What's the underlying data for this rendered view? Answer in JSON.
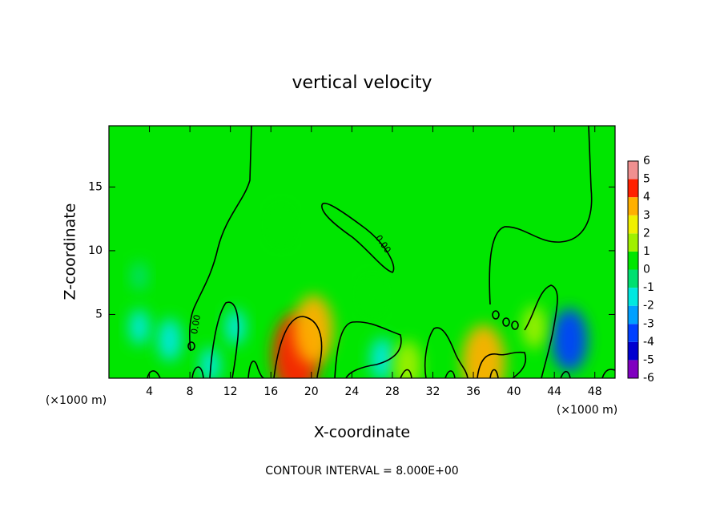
{
  "chart_data": {
    "type": "contour",
    "title": "vertical velocity",
    "x_label": "X-coordinate",
    "y_label": "Z-coordinate",
    "x_unit": "(×1000 m)",
    "annotation": "CONTOUR INTERVAL = 8.000E+00",
    "contour_label": "0.00",
    "xlim": [
      0,
      50
    ],
    "ylim": [
      0,
      19.8
    ],
    "xticks": [
      4,
      8,
      12,
      16,
      20,
      24,
      28,
      32,
      36,
      40,
      44,
      48
    ],
    "yticks": [
      5,
      10,
      15
    ],
    "background_value": 0.5,
    "colorbar": {
      "levels": [
        -6,
        -5,
        -4,
        -3,
        -2,
        -1,
        0,
        1,
        2,
        3,
        4,
        5,
        6
      ],
      "colors": [
        "#8000c0",
        "#0000d0",
        "#0040ff",
        "#00a0ff",
        "#00e8e0",
        "#00e070",
        "#00e600",
        "#a0f000",
        "#f0f000",
        "#ffb000",
        "#ff2000",
        "#f09090"
      ]
    },
    "features": [
      {
        "x": 18.5,
        "z": 1.8,
        "value": 4.5
      },
      {
        "x": 20.2,
        "z": 3.8,
        "value": 3.5
      },
      {
        "x": 37,
        "z": 1.2,
        "value": 4
      },
      {
        "x": 45.5,
        "z": 3,
        "value": -3
      },
      {
        "x": 6,
        "z": 3,
        "value": -1.5
      },
      {
        "x": 3,
        "z": 4,
        "value": -1
      },
      {
        "x": 27,
        "z": 1.5,
        "value": -1.5
      },
      {
        "x": 17,
        "z": 12,
        "value": 1
      },
      {
        "x": 12.5,
        "z": 4,
        "value": -1
      },
      {
        "x": 29.5,
        "z": 1,
        "value": 2
      },
      {
        "x": 3,
        "z": 8,
        "value": -0.5
      },
      {
        "x": 26,
        "z": 6.5,
        "value": 1
      },
      {
        "x": 42,
        "z": 4,
        "value": 1.5
      },
      {
        "x": 10,
        "z": 1,
        "value": -1
      }
    ]
  }
}
